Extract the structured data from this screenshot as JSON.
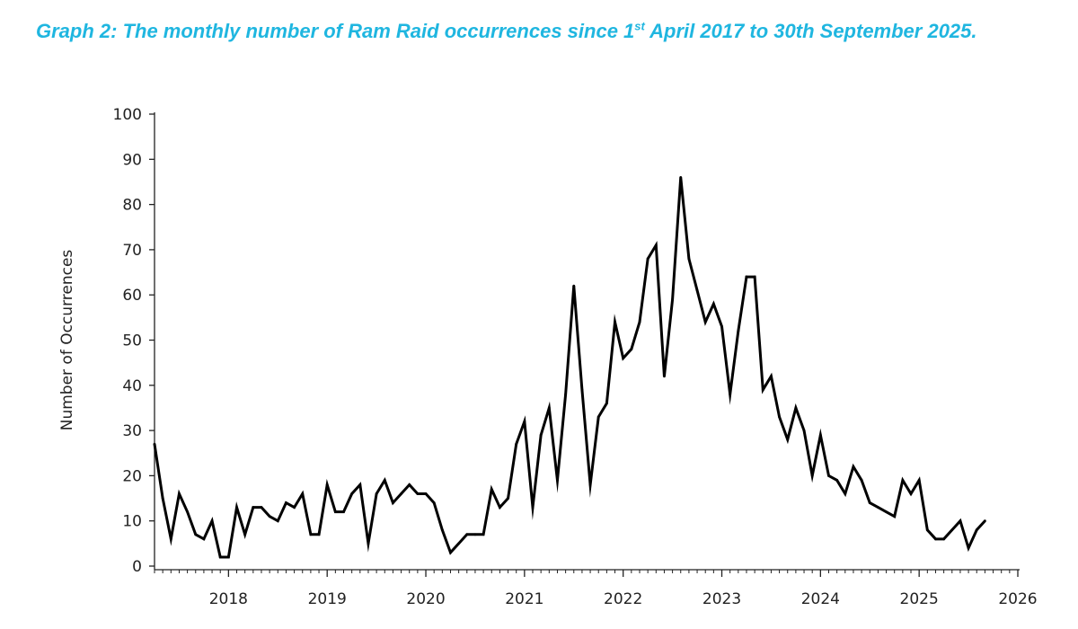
{
  "caption": {
    "prefix": "Graph 2: The monthly number of Ram Raid occurrences since 1",
    "superscript": "st",
    "suffix": " April 2017 to 30th September 2025."
  },
  "chart_data": {
    "type": "line",
    "title": "Graph 2: The monthly number of Ram Raid occurrences since 1st April 2017 to 30th September 2025.",
    "xlabel": "",
    "ylabel": "Number of Occurrences",
    "ylim": [
      0,
      100
    ],
    "yticks": [
      0,
      10,
      20,
      30,
      40,
      50,
      60,
      70,
      80,
      90,
      100
    ],
    "xlim": [
      "2017-04",
      "2026-01"
    ],
    "xticks": [
      "2018",
      "2019",
      "2020",
      "2021",
      "2022",
      "2023",
      "2024",
      "2025",
      "2026"
    ],
    "grid": false,
    "color": "#000000",
    "series": [
      {
        "x": [
          "2017-04",
          "2017-05",
          "2017-06",
          "2017-07",
          "2017-08",
          "2017-09",
          "2017-10",
          "2017-11",
          "2017-12",
          "2018-01",
          "2018-02",
          "2018-03",
          "2018-04",
          "2018-05",
          "2018-06",
          "2018-07",
          "2018-08",
          "2018-09",
          "2018-10",
          "2018-11",
          "2018-12",
          "2019-01",
          "2019-02",
          "2019-03",
          "2019-04",
          "2019-05",
          "2019-06",
          "2019-07",
          "2019-08",
          "2019-09",
          "2019-10",
          "2019-11",
          "2019-12",
          "2020-01",
          "2020-02",
          "2020-03",
          "2020-04",
          "2020-05",
          "2020-06",
          "2020-07",
          "2020-08",
          "2020-09",
          "2020-10",
          "2020-11",
          "2020-12",
          "2021-01",
          "2021-02",
          "2021-03",
          "2021-04",
          "2021-05",
          "2021-06",
          "2021-07",
          "2021-08",
          "2021-09",
          "2021-10",
          "2021-11",
          "2021-12",
          "2022-01",
          "2022-02",
          "2022-03",
          "2022-04",
          "2022-05",
          "2022-06",
          "2022-07",
          "2022-08",
          "2022-09",
          "2022-10",
          "2022-11",
          "2022-12",
          "2023-01",
          "2023-02",
          "2023-03",
          "2023-04",
          "2023-05",
          "2023-06",
          "2023-07",
          "2023-08",
          "2023-09",
          "2023-10",
          "2023-11",
          "2023-12",
          "2024-01",
          "2024-02",
          "2024-03",
          "2024-04",
          "2024-05",
          "2024-06",
          "2024-07",
          "2024-08",
          "2024-09",
          "2024-10",
          "2024-11",
          "2024-12",
          "2025-01",
          "2025-02",
          "2025-03",
          "2025-04",
          "2025-05",
          "2025-06",
          "2025-07",
          "2025-08",
          "2025-09"
        ],
        "values": [
          27,
          15,
          6,
          16,
          12,
          7,
          6,
          10,
          2,
          2,
          13,
          7,
          13,
          13,
          11,
          10,
          14,
          13,
          16,
          7,
          7,
          18,
          12,
          12,
          16,
          18,
          5,
          16,
          19,
          14,
          16,
          18,
          16,
          16,
          14,
          8,
          3,
          5,
          7,
          7,
          7,
          17,
          13,
          15,
          27,
          32,
          13,
          29,
          35,
          19,
          38,
          62,
          39,
          18,
          33,
          36,
          54,
          46,
          48,
          54,
          68,
          71,
          42,
          59,
          86,
          68,
          61,
          54,
          58,
          53,
          38,
          52,
          64,
          64,
          39,
          42,
          33,
          28,
          35,
          30,
          20,
          29,
          20,
          19,
          16,
          22,
          19,
          14,
          13,
          12,
          11,
          19,
          16,
          19,
          8,
          6,
          6,
          8,
          10,
          4,
          8,
          10
        ]
      }
    ]
  }
}
